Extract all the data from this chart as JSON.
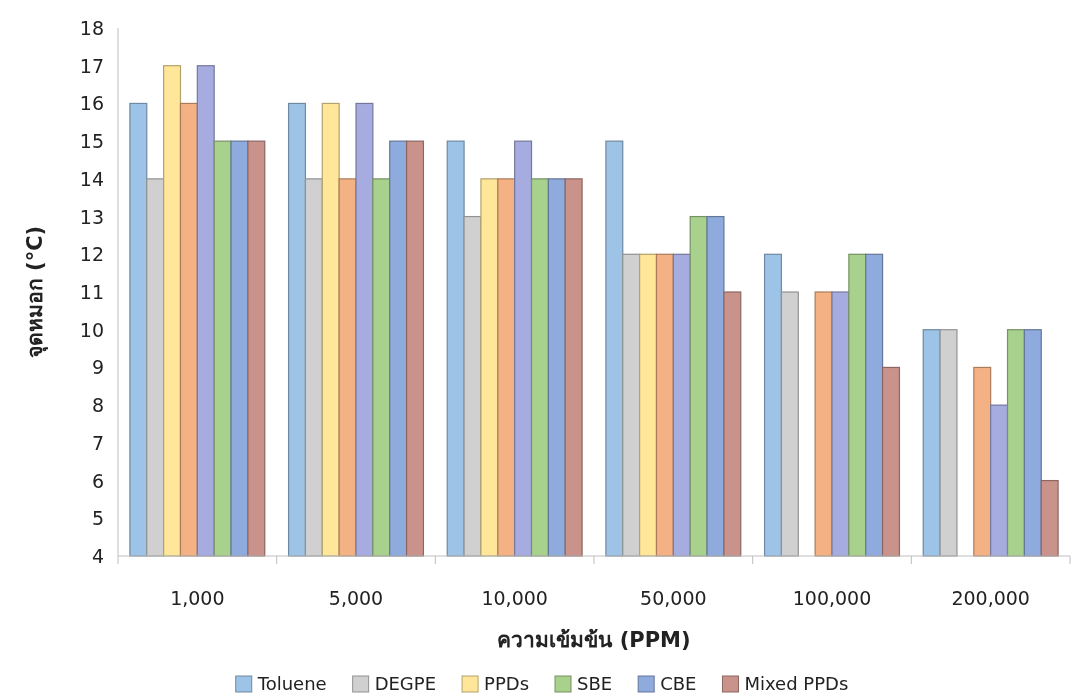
{
  "chart_data": {
    "type": "bar",
    "xlabel": "ความเข้มข้น (PPM)",
    "ylabel": "จุดหมอก (°C)",
    "categories": [
      "1,000",
      "5,000",
      "10,000",
      "50,000",
      "100,000",
      "200,000"
    ],
    "series": [
      {
        "name": "Toluene",
        "color": "#9dc3e6",
        "values": [
          16,
          16,
          15,
          15,
          12,
          10
        ]
      },
      {
        "name": "DEGPE",
        "color": "#d0d0d0",
        "values": [
          14,
          14,
          13,
          12,
          11,
          10
        ]
      },
      {
        "name": "PPDs",
        "color": "#ffe699",
        "values": [
          17,
          16,
          14,
          12,
          null,
          null
        ]
      },
      {
        "color": "#f4b183",
        "values": [
          16,
          14,
          14,
          12,
          11,
          9
        ]
      },
      {
        "color": "#a6acdf",
        "values": [
          17,
          16,
          15,
          12,
          11,
          8
        ]
      },
      {
        "name": "SBE",
        "color": "#a9d18e",
        "values": [
          15,
          14,
          14,
          13,
          12,
          10
        ]
      },
      {
        "name": "CBE",
        "color": "#8faadc",
        "values": [
          15,
          15,
          14,
          13,
          12,
          10
        ]
      },
      {
        "name": "Mixed PPDs",
        "color": "#c9928a",
        "values": [
          15,
          15,
          14,
          11,
          9,
          6
        ]
      }
    ],
    "ylim": [
      4,
      18
    ],
    "yticks": [
      4,
      5,
      6,
      7,
      8,
      9,
      10,
      11,
      12,
      13,
      14,
      15,
      16,
      17,
      18
    ],
    "grid": false,
    "legend": "bottom"
  }
}
